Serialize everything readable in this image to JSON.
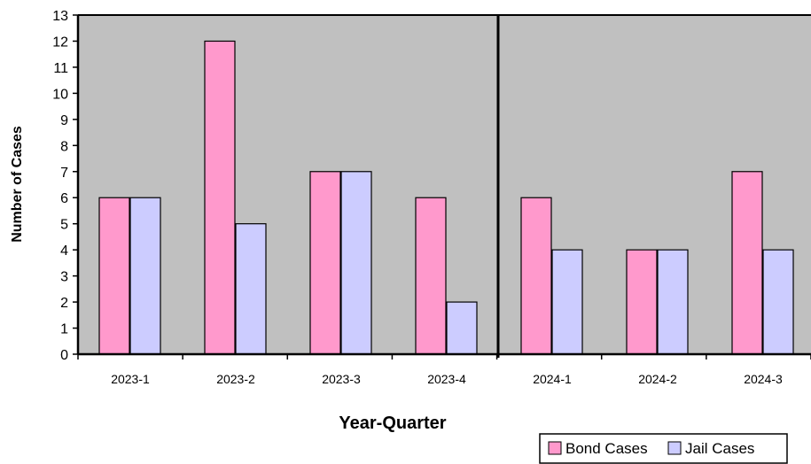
{
  "chart_data": {
    "type": "bar",
    "categories": [
      "2023-1",
      "2023-2",
      "2023-3",
      "2023-4",
      "2024-1",
      "2024-2",
      "2024-3"
    ],
    "series": [
      {
        "name": "Bond Cases",
        "values": [
          6,
          12,
          7,
          6,
          6,
          4,
          7
        ],
        "color": "#FF99CC"
      },
      {
        "name": "Jail Cases",
        "values": [
          6,
          5,
          7,
          2,
          4,
          4,
          4
        ],
        "color": "#CCCCFF"
      }
    ],
    "xlabel": "Year-Quarter",
    "ylabel": "Number of Cases",
    "ylim": [
      0,
      13
    ],
    "yticks": [
      0,
      1,
      2,
      3,
      4,
      5,
      6,
      7,
      8,
      9,
      10,
      11,
      12,
      13
    ],
    "plot_background": "#C0C0C0",
    "divider_between": [
      "2023-4",
      "2024-1"
    ],
    "grid": false,
    "legend_position": "bottom-right"
  }
}
